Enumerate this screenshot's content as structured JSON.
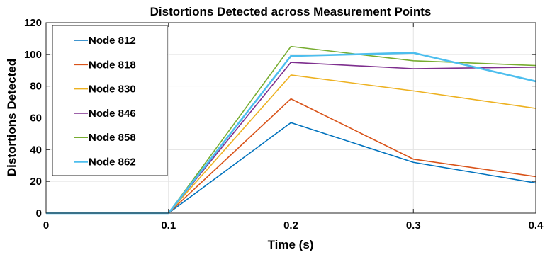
{
  "chart_data": {
    "type": "line",
    "title": "Distortions Detected across Measurement Points",
    "xlabel": "Time (s)",
    "ylabel": "Distortions Detected",
    "x": [
      0,
      0.1,
      0.2,
      0.3,
      0.4
    ],
    "xlim": [
      0,
      0.4
    ],
    "ylim": [
      0,
      120
    ],
    "xticks": [
      "0",
      "0.1",
      "0.2",
      "0.3",
      "0.4"
    ],
    "xtick_values": [
      0,
      0.1,
      0.2,
      0.3,
      0.4
    ],
    "yticks": [
      "0",
      "20",
      "40",
      "60",
      "80",
      "100",
      "120"
    ],
    "ytick_values": [
      0,
      20,
      40,
      60,
      80,
      100,
      120
    ],
    "grid": true,
    "legend_position": "top-left",
    "series": [
      {
        "name": "Node 812",
        "color": "#0072BD",
        "values": [
          0,
          0,
          57,
          32,
          19
        ]
      },
      {
        "name": "Node 818",
        "color": "#D95319",
        "values": [
          0,
          0,
          72,
          34,
          23
        ]
      },
      {
        "name": "Node 830",
        "color": "#EDB120",
        "values": [
          0,
          0,
          87,
          77,
          66
        ]
      },
      {
        "name": "Node 846",
        "color": "#7E2F8E",
        "values": [
          0,
          0,
          95,
          91,
          92
        ]
      },
      {
        "name": "Node 858",
        "color": "#77AC30",
        "values": [
          0,
          0,
          105,
          96,
          93
        ]
      },
      {
        "name": "Node 862",
        "color": "#4DBEEE",
        "values": [
          0,
          0,
          99,
          101,
          83
        ]
      }
    ]
  }
}
